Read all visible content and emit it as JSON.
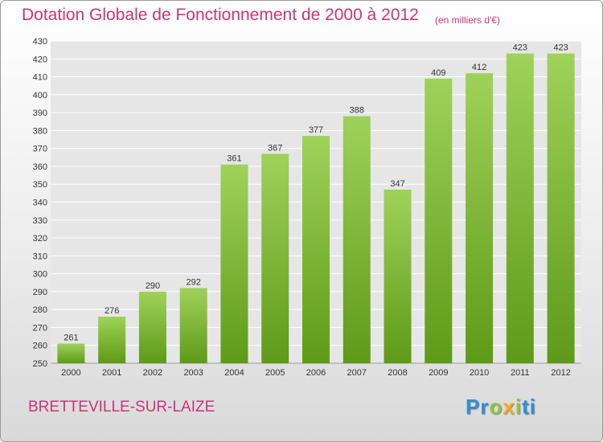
{
  "title": "Dotation Globale de Fonctionnement de 2000 à 2012",
  "subtitle": "(en milliers d'€)",
  "commune": "BRETTEVILLE-SUR-LAIZE",
  "logo": {
    "letters": [
      {
        "char": "P",
        "color": "#2f8fd8"
      },
      {
        "char": "r",
        "color": "#2f8fd8"
      },
      {
        "char": "o",
        "color": "#8cc63f"
      },
      {
        "char": "x",
        "color": "#f5a623"
      },
      {
        "char": "i",
        "color": "#8cc63f"
      },
      {
        "char": "t",
        "color": "#2f8fd8"
      },
      {
        "char": "i",
        "color": "#2f8fd8"
      }
    ]
  },
  "colors": {
    "bar_top": "#9fd25a",
    "bar_bottom": "#5e9a17",
    "title": "#c8357a",
    "grid": "#ffffff"
  },
  "chart_data": {
    "type": "bar",
    "categories": [
      "2000",
      "2001",
      "2002",
      "2003",
      "2004",
      "2005",
      "2006",
      "2007",
      "2008",
      "2009",
      "2010",
      "2011",
      "2012"
    ],
    "values": [
      261,
      276,
      290,
      292,
      361,
      367,
      377,
      388,
      347,
      409,
      412,
      423,
      423
    ],
    "title": "Dotation Globale de Fonctionnement de 2000 à 2012",
    "ylabel": "",
    "xlabel": "",
    "ylim": [
      250,
      430
    ],
    "yticks": [
      250,
      260,
      270,
      280,
      290,
      300,
      310,
      320,
      330,
      340,
      350,
      360,
      370,
      380,
      390,
      400,
      410,
      420,
      430
    ],
    "grid": true
  }
}
